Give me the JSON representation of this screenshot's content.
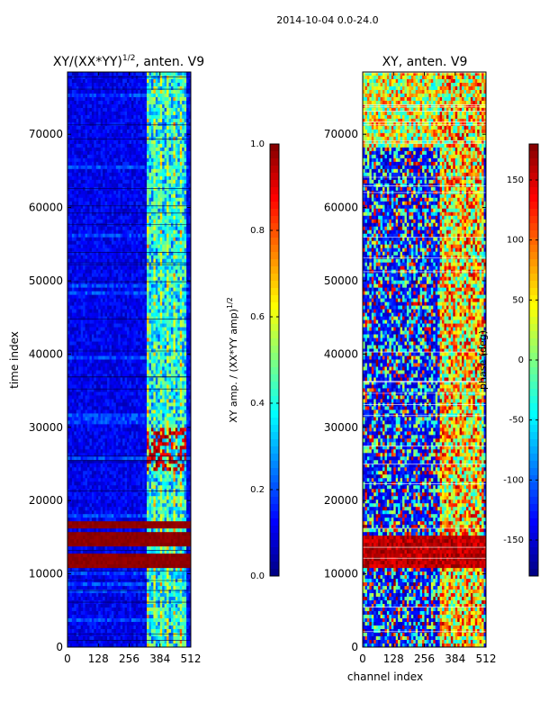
{
  "figure": {
    "suptitle": "2014-10-04 0.0-24.0"
  },
  "chart_data": [
    {
      "type": "heatmap",
      "title_main": "XY/(XX*YY)",
      "title_exp": "1/2",
      "title_tail": ", anten. V9",
      "xlabel": "",
      "ylabel": "time index",
      "xlim": [
        0,
        512
      ],
      "ylim": [
        0,
        78500
      ],
      "x_ticks": [
        0,
        128,
        256,
        384,
        512
      ],
      "y_ticks": [
        0,
        10000,
        20000,
        30000,
        40000,
        50000,
        60000,
        70000
      ],
      "bright_channels_start": 330,
      "saturated_time_bands": [
        [
          11000,
          13000
        ],
        [
          13500,
          15500
        ],
        [
          16000,
          17000
        ]
      ],
      "colorbar": {
        "label_main": "XY amp. / (XX*YY amp)",
        "label_exp": "1/2",
        "range": [
          0.0,
          1.0
        ],
        "ticks": [
          "0.0",
          "0.2",
          "0.4",
          "0.6",
          "0.8",
          "1.0"
        ]
      }
    },
    {
      "type": "heatmap",
      "title": "XY, anten. V9",
      "xlabel": "channel index",
      "ylabel": "",
      "xlim": [
        0,
        512
      ],
      "ylim": [
        0,
        78500
      ],
      "x_ticks": [
        0,
        128,
        256,
        384,
        512
      ],
      "y_ticks": [
        0,
        10000,
        20000,
        30000,
        40000,
        50000,
        60000,
        70000
      ],
      "bright_channels_start": 320,
      "saturated_time_bands": [
        [
          11000,
          15000
        ]
      ],
      "colorbar": {
        "label": "phase (deg)",
        "range": [
          -180,
          180
        ],
        "ticks": [
          "-150",
          "-100",
          "-50",
          "0",
          "50",
          "100",
          "150"
        ]
      }
    }
  ]
}
